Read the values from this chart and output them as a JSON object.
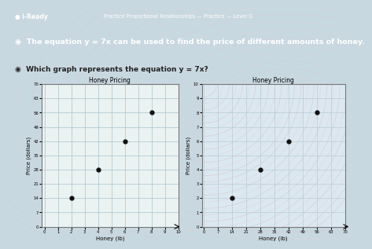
{
  "header_text": "Practice Proportional Relationships — Practice — Level G",
  "brand_text": "● i-Ready",
  "question1": "◉  The equation y = 7x can be used to find the price of different amounts of honey.",
  "question2": "◉  Which graph represents the equation y = 7x?",
  "left_graph": {
    "title": "Honey Pricing",
    "xlabel": "Honey (lb)",
    "ylabel": "Price (dollars)",
    "xlim": [
      0,
      10
    ],
    "ylim": [
      0,
      70
    ],
    "xticks": [
      0,
      1,
      2,
      3,
      4,
      5,
      6,
      7,
      8,
      9,
      10
    ],
    "yticks": [
      0,
      7,
      14,
      21,
      28,
      35,
      42,
      49,
      56,
      63,
      70
    ],
    "points": [
      [
        2,
        14
      ],
      [
        4,
        28
      ],
      [
        6,
        42
      ],
      [
        8,
        56
      ]
    ],
    "point_color": "#111111",
    "grid_color": "#aac4cc",
    "bg_color": "#eaf2f2"
  },
  "right_graph": {
    "title": "Honey Pricing",
    "xlabel": "Honey (lb)",
    "ylabel": "Price (dollars)",
    "xlim": [
      0,
      70
    ],
    "ylim": [
      0,
      10
    ],
    "xticks": [
      0,
      7,
      14,
      21,
      28,
      35,
      42,
      49,
      56,
      63,
      70
    ],
    "yticks": [
      0,
      1,
      2,
      3,
      4,
      5,
      6,
      7,
      8,
      9,
      10
    ],
    "points": [
      [
        14,
        2
      ],
      [
        28,
        4
      ],
      [
        42,
        6
      ],
      [
        56,
        8
      ]
    ],
    "point_color": "#111111",
    "grid_color": "#b8ccd8",
    "bg_color": "#dce8f0"
  },
  "page_bg": "#c8d8e0",
  "header_bg": "#3a82b8",
  "header_bar_bg": "#2a6898",
  "blue_banner_bg": "#3a7ab8",
  "panel_bg": "#d0dce8",
  "title_color": "#ffffff",
  "q_color": "#222222",
  "ripple_color1": "#e8d8d0",
  "ripple_color2": "#d0c8e0"
}
